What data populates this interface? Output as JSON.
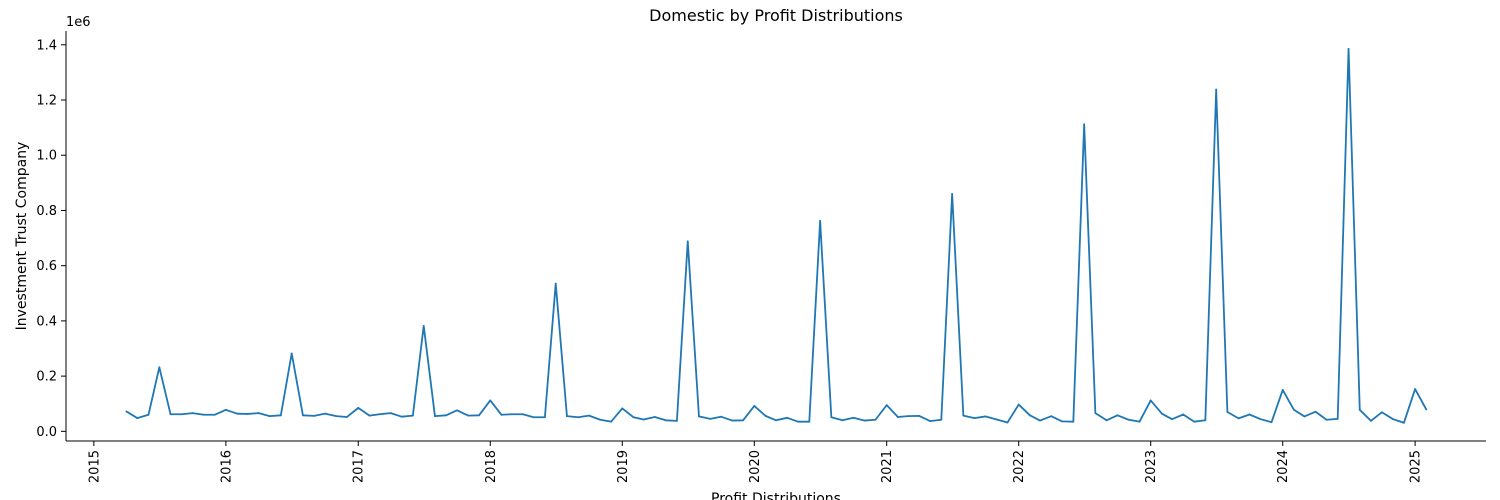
{
  "chart_data": {
    "type": "line",
    "title": "Domestic by Profit Distributions",
    "xlabel": "Profit Distributions",
    "ylabel": "Investment Trust Company",
    "y_offset_label": "1e6",
    "xlim": [
      "2014-10-16",
      "2025-07-16"
    ],
    "ylim": [
      -35000,
      1450000
    ],
    "x_ticks": [
      "2015",
      "2016",
      "2017",
      "2018",
      "2019",
      "2020",
      "2021",
      "2022",
      "2023",
      "2024",
      "2025"
    ],
    "y_ticks": [
      "0.0",
      "0.2",
      "0.4",
      "0.6",
      "0.8",
      "1.0",
      "1.2",
      "1.4"
    ],
    "y_tick_values": [
      0,
      200000,
      400000,
      600000,
      800000,
      1000000,
      1200000,
      1400000
    ],
    "grid": false,
    "series": [
      {
        "color": "#1f77b4",
        "x": [
          "2015-04",
          "2015-05",
          "2015-06",
          "2015-07",
          "2015-08",
          "2015-09",
          "2015-10",
          "2015-11",
          "2015-12",
          "2016-01",
          "2016-02",
          "2016-03",
          "2016-04",
          "2016-05",
          "2016-06",
          "2016-07",
          "2016-08",
          "2016-09",
          "2016-10",
          "2016-11",
          "2016-12",
          "2017-01",
          "2017-02",
          "2017-03",
          "2017-04",
          "2017-05",
          "2017-06",
          "2017-07",
          "2017-08",
          "2017-09",
          "2017-10",
          "2017-11",
          "2017-12",
          "2018-01",
          "2018-02",
          "2018-03",
          "2018-04",
          "2018-05",
          "2018-06",
          "2018-07",
          "2018-08",
          "2018-09",
          "2018-10",
          "2018-11",
          "2018-12",
          "2019-01",
          "2019-02",
          "2019-03",
          "2019-04",
          "2019-05",
          "2019-06",
          "2019-07",
          "2019-08",
          "2019-09",
          "2019-10",
          "2019-11",
          "2019-12",
          "2020-01",
          "2020-02",
          "2020-03",
          "2020-04",
          "2020-05",
          "2020-06",
          "2020-07",
          "2020-08",
          "2020-09",
          "2020-10",
          "2020-11",
          "2020-12",
          "2021-01",
          "2021-02",
          "2021-03",
          "2021-04",
          "2021-05",
          "2021-06",
          "2021-07",
          "2021-08",
          "2021-09",
          "2021-10",
          "2021-11",
          "2021-12",
          "2022-01",
          "2022-02",
          "2022-03",
          "2022-04",
          "2022-05",
          "2022-06",
          "2022-07",
          "2022-08",
          "2022-09",
          "2022-10",
          "2022-11",
          "2022-12",
          "2023-01",
          "2023-02",
          "2023-03",
          "2023-04",
          "2023-05",
          "2023-06",
          "2023-07",
          "2023-08",
          "2023-09",
          "2023-10",
          "2023-11",
          "2023-12",
          "2024-01",
          "2024-02",
          "2024-03",
          "2024-04",
          "2024-05",
          "2024-06",
          "2024-07",
          "2024-08",
          "2024-09",
          "2024-10",
          "2024-11",
          "2024-12",
          "2025-01",
          "2025-02"
        ],
        "values": [
          72000,
          48000,
          60000,
          232000,
          62000,
          62000,
          66000,
          60000,
          60000,
          78000,
          64000,
          63000,
          66000,
          55000,
          58000,
          282000,
          58000,
          56000,
          64000,
          55000,
          52000,
          85000,
          57000,
          62000,
          66000,
          53000,
          57000,
          382000,
          55000,
          58000,
          76000,
          57000,
          58000,
          112000,
          60000,
          62000,
          62000,
          51000,
          51000,
          535000,
          55000,
          51000,
          57000,
          42000,
          35000,
          83000,
          51000,
          43000,
          52000,
          40000,
          38000,
          688000,
          54000,
          45000,
          53000,
          39000,
          40000,
          92000,
          56000,
          40000,
          49000,
          35000,
          35000,
          762000,
          51000,
          40000,
          49000,
          39000,
          42000,
          95000,
          52000,
          55000,
          56000,
          37000,
          42000,
          860000,
          57000,
          48000,
          54000,
          43000,
          32000,
          97000,
          58000,
          39000,
          55000,
          36000,
          35000,
          1112000,
          66000,
          40000,
          58000,
          42000,
          35000,
          112000,
          64000,
          44000,
          61000,
          35000,
          40000,
          1238000,
          70000,
          47000,
          61000,
          44000,
          33000,
          150000,
          78000,
          54000,
          71000,
          42000,
          45000,
          1385000,
          78000,
          38000,
          69000,
          44000,
          31000,
          153000,
          79000
        ]
      }
    ]
  }
}
